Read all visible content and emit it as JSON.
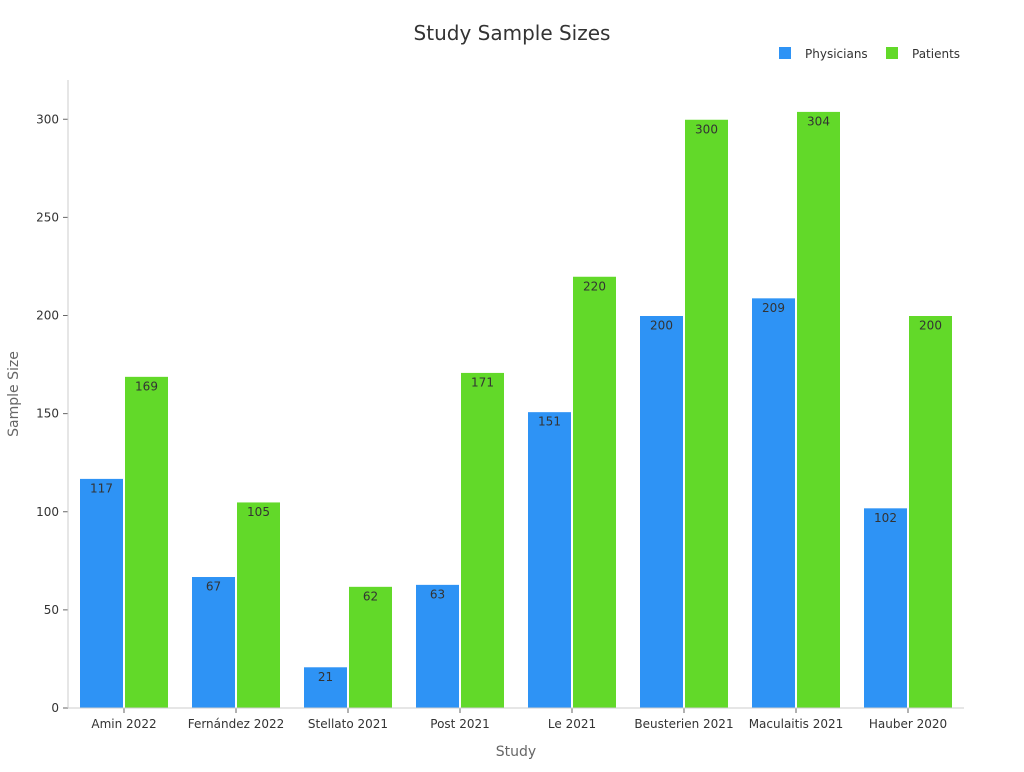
{
  "chart_data": {
    "type": "bar",
    "title": "Study Sample Sizes",
    "xlabel": "Study",
    "ylabel": "Sample Size",
    "categories": [
      "Amin 2022",
      "Fernández 2022",
      "Stellato 2021",
      "Post 2021",
      "Le 2021",
      "Beusterien 2021",
      "Maculaitis 2021",
      "Hauber 2020"
    ],
    "series": [
      {
        "name": "Physicians",
        "color": "#2e93f5",
        "values": [
          117,
          67,
          21,
          63,
          151,
          200,
          209,
          102
        ]
      },
      {
        "name": "Patients",
        "color": "#62d929",
        "values": [
          169,
          105,
          62,
          171,
          220,
          300,
          304,
          200
        ]
      }
    ],
    "ylim": [
      0,
      320
    ],
    "yticks": [
      0,
      50,
      100,
      150,
      200,
      250,
      300
    ],
    "grid": false,
    "legend_position": "top-right",
    "data_labels": true
  }
}
